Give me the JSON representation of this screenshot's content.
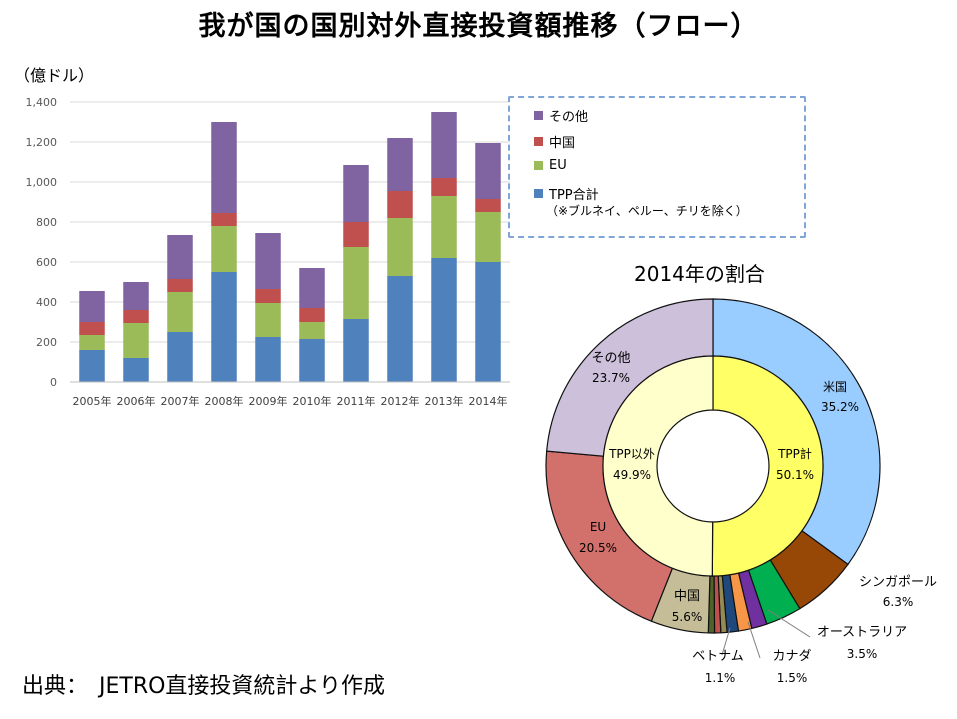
{
  "title": "我が国の国別対外直接投資額推移（フロー）",
  "unit_label": "（億ドル）",
  "legend": {
    "items": [
      {
        "label": "その他",
        "color": "#8064a2"
      },
      {
        "label": "中国",
        "color": "#c0504d"
      },
      {
        "label": "EU",
        "color": "#9bbb59"
      },
      {
        "label": "TPP合計",
        "color": "#4f81bd"
      }
    ],
    "note": "（※ブルネイ、ペルー、チリを除く）"
  },
  "pie_title": "2014年の割合",
  "source": "出典：　JETRO直接投資統計より作成",
  "chart_data": [
    {
      "type": "bar",
      "stacked": true,
      "categories": [
        "2005年",
        "2006年",
        "2007年",
        "2008年",
        "2009年",
        "2010年",
        "2011年",
        "2012年",
        "2013年",
        "2014年"
      ],
      "series": [
        {
          "name": "TPP合計",
          "color": "#4f81bd",
          "values": [
            160,
            120,
            250,
            550,
            225,
            215,
            315,
            530,
            620,
            600
          ]
        },
        {
          "name": "EU",
          "color": "#9bbb59",
          "values": [
            75,
            175,
            200,
            230,
            170,
            85,
            360,
            290,
            310,
            250
          ]
        },
        {
          "name": "中国",
          "color": "#c0504d",
          "values": [
            65,
            65,
            65,
            65,
            70,
            70,
            125,
            135,
            90,
            65
          ]
        },
        {
          "name": "その他",
          "color": "#8064a2",
          "values": [
            155,
            140,
            220,
            455,
            280,
            200,
            285,
            265,
            330,
            280
          ]
        }
      ],
      "ylim": [
        0,
        1400
      ],
      "yticks": [
        "0",
        "200",
        "400",
        "600",
        "800",
        "1,000",
        "1,200",
        "1,400"
      ],
      "grid": true,
      "legend_position": "right"
    },
    {
      "type": "pie",
      "style": "donut",
      "outer": [
        {
          "label": "米国",
          "percent": 35.2,
          "color": "#99ccff"
        },
        {
          "label": "シンガポール",
          "percent": 6.3,
          "color": "#974806"
        },
        {
          "label": "",
          "percent": 3.5,
          "color": "#00b050"
        },
        {
          "label": "",
          "percent": 1.5,
          "color": "#7030a0"
        },
        {
          "label": "",
          "percent": 1.3,
          "color": "#f79646"
        },
        {
          "label": "",
          "percent": 1.1,
          "color": "#1f497d"
        },
        {
          "label": "",
          "percent": 0.6,
          "color": "#948a54"
        },
        {
          "label": "",
          "percent": 0.6,
          "color": "#c0504d"
        },
        {
          "label": "",
          "percent": 0.6,
          "color": "#4f6228"
        },
        {
          "label": "中国",
          "percent": 5.6,
          "color": "#c4bd97"
        },
        {
          "label": "EU",
          "percent": 20.5,
          "color": "#d2706c"
        },
        {
          "label": "その他",
          "percent": 23.7,
          "color": "#ccc0da"
        }
      ],
      "inner": [
        {
          "label": "TPP計",
          "percent": 50.1,
          "color": "#ffff66"
        },
        {
          "label": "TPP以外",
          "percent": 49.9,
          "color": "#ffffcc"
        }
      ],
      "callouts": [
        {
          "label": "オーストラリア",
          "value": "3.5%"
        },
        {
          "label": "カナダ",
          "value": "1.5%"
        },
        {
          "label": "ベトナム",
          "value": "1.1%"
        }
      ]
    }
  ]
}
